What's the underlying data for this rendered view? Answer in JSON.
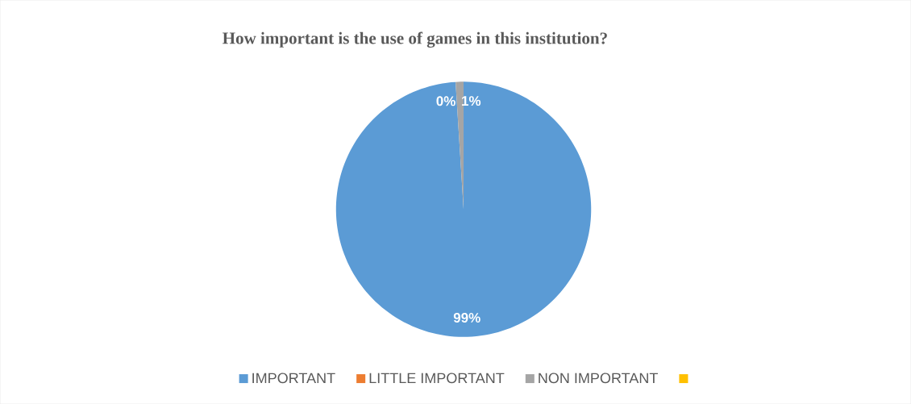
{
  "chart_data": {
    "type": "pie",
    "title": "How important is the use of games in this institution?",
    "categories": [
      "IMPORTANT",
      "LITTLE IMPORTANT",
      "NON IMPORTANT",
      null
    ],
    "values": [
      99,
      0,
      1,
      0
    ],
    "colors": [
      "#5b9bd5",
      "#ed7d31",
      "#a5a5a5",
      "#ffc000"
    ],
    "value_labels": [
      "99%",
      "0%",
      "1%",
      null
    ],
    "legend": "bottom"
  }
}
